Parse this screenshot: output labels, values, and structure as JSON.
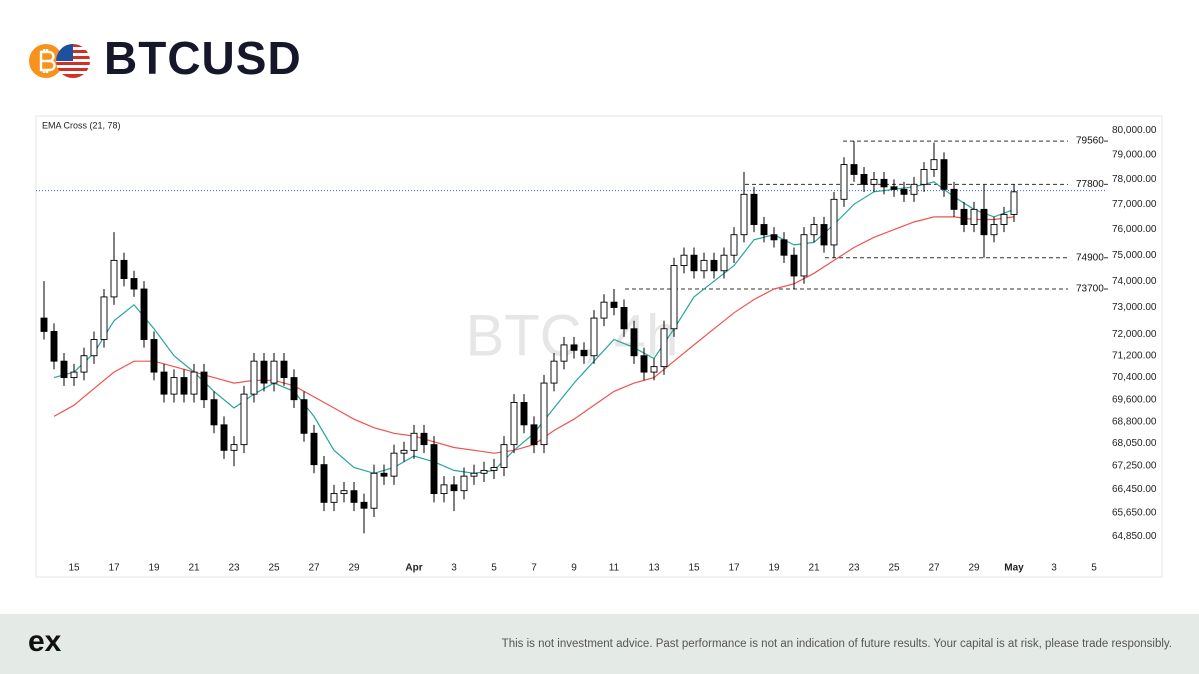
{
  "header": {
    "title": "BTCUSD"
  },
  "footer": {
    "logo": "ex",
    "disclaimer": "This is not investment advice. Past performance is not an indication of future results. Your capital is at risk, please trade responsibly."
  },
  "chart_data": {
    "type": "candlestick",
    "indicator_label": "EMA Cross (21, 78)",
    "watermark": "BTC, 4h",
    "log_scale": true,
    "grid": false,
    "up_color": "#ffffff",
    "down_color": "#000000",
    "wick_color": "#000000",
    "x": [
      13.5,
      14,
      14.5,
      15,
      15.5,
      16,
      16.5,
      17,
      17.5,
      18,
      18.5,
      19,
      19.5,
      20,
      20.5,
      21,
      21.5,
      22,
      22.5,
      23,
      23.5,
      24,
      24.5,
      25,
      25.5,
      26,
      26.5,
      27,
      27.5,
      28,
      28.5,
      29,
      29.5,
      30,
      30.5,
      31,
      31.5,
      32,
      32.5,
      33,
      33.5,
      34,
      34.5,
      35,
      35.5,
      36,
      36.5,
      37,
      37.5,
      38,
      38.5,
      39,
      39.5,
      40,
      40.5,
      41,
      41.5,
      42,
      42.5,
      43,
      43.5,
      44,
      44.5,
      45,
      45.5,
      46,
      46.5,
      47,
      47.5,
      48,
      48.5,
      49,
      49.5,
      50,
      50.5,
      51,
      51.5,
      52,
      52.5,
      53,
      53.5,
      54,
      54.5,
      55,
      55.5,
      56,
      56.5,
      57,
      57.5,
      58,
      58.5,
      59,
      59.5,
      60,
      60.5,
      61,
      61.5,
      62
    ],
    "open": [
      72600,
      72100,
      71000,
      70400,
      70600,
      71200,
      71800,
      73400,
      74800,
      74100,
      73700,
      71800,
      70600,
      69800,
      70400,
      69800,
      70600,
      69600,
      68700,
      67800,
      68000,
      69800,
      71000,
      70200,
      71000,
      70400,
      69600,
      68400,
      67300,
      66000,
      66300,
      66400,
      66000,
      65800,
      67000,
      66900,
      67700,
      67800,
      68400,
      68000,
      66300,
      66600,
      66400,
      66900,
      67000,
      67100,
      67200,
      68000,
      69500,
      68700,
      68000,
      70200,
      71000,
      71600,
      71400,
      71200,
      72600,
      73200,
      73000,
      72200,
      71200,
      70600,
      70800,
      72200,
      74600,
      75000,
      74400,
      74800,
      74400,
      75000,
      75800,
      77400,
      76200,
      75800,
      75600,
      75000,
      74200,
      75800,
      76200,
      75400,
      77200,
      78600,
      78200,
      77800,
      78000,
      77700,
      77600,
      77400,
      77800,
      78400,
      78800,
      77600,
      76800,
      76200,
      76800,
      75800,
      76200,
      76600
    ],
    "high": [
      74000,
      72400,
      71300,
      70900,
      71500,
      72100,
      73700,
      75900,
      75100,
      74400,
      74000,
      72100,
      70900,
      70700,
      70700,
      70900,
      70900,
      69900,
      69000,
      68300,
      70100,
      71300,
      71300,
      71300,
      71300,
      70700,
      69900,
      68700,
      67600,
      66600,
      66700,
      66700,
      66300,
      67300,
      67300,
      68000,
      68100,
      68700,
      68700,
      68300,
      66900,
      66900,
      67200,
      67300,
      67400,
      67500,
      68300,
      69800,
      69800,
      69000,
      70500,
      71300,
      71900,
      71900,
      71700,
      72900,
      73500,
      73700,
      73300,
      72500,
      71500,
      71100,
      72500,
      74900,
      75300,
      75300,
      75100,
      75100,
      75300,
      76100,
      78300,
      77700,
      76500,
      76100,
      75900,
      75300,
      76100,
      76500,
      76500,
      77500,
      78900,
      79560,
      78500,
      78300,
      78300,
      78000,
      77900,
      78100,
      78700,
      79500,
      79100,
      77900,
      77100,
      77100,
      77800,
      76500,
      76900,
      77800
    ],
    "low": [
      71800,
      70700,
      70100,
      70100,
      70300,
      70900,
      71500,
      73100,
      73800,
      73400,
      71500,
      70300,
      69500,
      69500,
      69500,
      69500,
      69300,
      68400,
      67500,
      67250,
      67700,
      69500,
      69900,
      69900,
      70100,
      69300,
      68100,
      67000,
      65700,
      65700,
      66000,
      65700,
      64950,
      65500,
      66600,
      66600,
      67400,
      67500,
      67700,
      66000,
      66000,
      65700,
      66100,
      66600,
      66700,
      66800,
      66900,
      67700,
      68400,
      67700,
      67700,
      69900,
      70700,
      71100,
      70900,
      70900,
      72300,
      72700,
      71900,
      70900,
      70300,
      70300,
      70500,
      71900,
      74300,
      74100,
      74100,
      74100,
      74100,
      74700,
      75500,
      75900,
      75500,
      75300,
      74700,
      73700,
      73900,
      75500,
      75100,
      74900,
      76900,
      77900,
      77500,
      77500,
      77400,
      77300,
      77100,
      77100,
      77500,
      78100,
      77300,
      76500,
      75900,
      75900,
      74900,
      75500,
      75900,
      76300
    ],
    "close": [
      72100,
      71000,
      70400,
      70600,
      71200,
      71800,
      73400,
      74800,
      74100,
      73700,
      71800,
      70600,
      69800,
      70400,
      69800,
      70600,
      69600,
      68700,
      67800,
      68000,
      69800,
      71000,
      70200,
      71000,
      70400,
      69600,
      68400,
      67300,
      66000,
      66300,
      66400,
      66000,
      65800,
      67000,
      66900,
      67700,
      67800,
      68400,
      68000,
      66300,
      66600,
      66400,
      66900,
      67000,
      67100,
      67200,
      68000,
      69500,
      68700,
      68000,
      70200,
      71000,
      71600,
      71400,
      71200,
      72600,
      73200,
      73000,
      72200,
      71200,
      70600,
      70800,
      72200,
      74600,
      75000,
      74400,
      74800,
      74400,
      75000,
      75800,
      77400,
      76200,
      75800,
      75600,
      75000,
      74200,
      75800,
      76200,
      75400,
      77200,
      78600,
      78200,
      77800,
      78000,
      77700,
      77600,
      77400,
      77800,
      78400,
      78800,
      77600,
      76800,
      76200,
      76800,
      75800,
      76200,
      76600,
      77500
    ],
    "series": [
      {
        "color": "#26a69a",
        "x": [
          14,
          15,
          16,
          17,
          18,
          19,
          20,
          21,
          22,
          23,
          24,
          25,
          26,
          27,
          28,
          29,
          30,
          31,
          32,
          33,
          34,
          35,
          36,
          37,
          38,
          39,
          40,
          41,
          42,
          43,
          44,
          45,
          46,
          47,
          48,
          49,
          50,
          51,
          52,
          53,
          54,
          55,
          56,
          57,
          58,
          59,
          60,
          61,
          62
        ],
        "values": [
          70400,
          70600,
          71300,
          72500,
          73100,
          72200,
          71200,
          70600,
          69900,
          69300,
          69800,
          70200,
          69900,
          69000,
          67800,
          67200,
          67000,
          67200,
          67600,
          67400,
          67100,
          67000,
          67100,
          67800,
          68400,
          69300,
          70200,
          71000,
          71800,
          71500,
          71100,
          72200,
          73400,
          74000,
          74600,
          75600,
          75800,
          75400,
          75500,
          76200,
          77000,
          77500,
          77600,
          77700,
          77900,
          77300,
          76800,
          76500,
          76800
        ]
      },
      {
        "color": "#ef5350",
        "x": [
          14,
          15,
          16,
          17,
          18,
          19,
          20,
          21,
          22,
          23,
          24,
          25,
          26,
          27,
          28,
          29,
          30,
          31,
          32,
          33,
          34,
          35,
          36,
          37,
          38,
          39,
          40,
          41,
          42,
          43,
          44,
          45,
          46,
          47,
          48,
          49,
          50,
          51,
          52,
          53,
          54,
          55,
          56,
          57,
          58,
          59,
          60,
          61,
          62
        ],
        "values": [
          69000,
          69400,
          70000,
          70600,
          71000,
          71000,
          70800,
          70600,
          70400,
          70200,
          70300,
          70300,
          70100,
          69700,
          69300,
          68900,
          68600,
          68400,
          68300,
          68100,
          67900,
          67800,
          67700,
          67800,
          68000,
          68500,
          68900,
          69400,
          69900,
          70200,
          70400,
          71000,
          71600,
          72200,
          72800,
          73300,
          73700,
          73900,
          74300,
          74800,
          75300,
          75700,
          76000,
          76300,
          76500,
          76500,
          76400,
          76400,
          76500
        ]
      }
    ],
    "levels": [
      {
        "value": 79560,
        "x_start": 53.45
      },
      {
        "value": 77800,
        "x_start": 48.55
      },
      {
        "value": 74900,
        "x_start": 52.55
      },
      {
        "value": 73700,
        "x_start": 42.55
      }
    ],
    "last_price": 77550,
    "last_price_color": "#2962ff",
    "xlim": [
      13.1,
      66.6
    ],
    "ylim": [
      63500,
      80600
    ],
    "xticks": [
      15,
      17,
      19,
      21,
      23,
      25,
      27,
      29,
      {
        "value": 32,
        "label": "Apr"
      },
      {
        "value": 34,
        "label": "3"
      },
      {
        "value": 36,
        "label": "5"
      },
      {
        "value": 38,
        "label": "7"
      },
      {
        "value": 40,
        "label": "9"
      },
      {
        "value": 42,
        "label": "11"
      },
      {
        "value": 44,
        "label": "13"
      },
      {
        "value": 46,
        "label": "15"
      },
      {
        "value": 48,
        "label": "17"
      },
      {
        "value": 50,
        "label": "19"
      },
      {
        "value": 52,
        "label": "21"
      },
      {
        "value": 54,
        "label": "23"
      },
      {
        "value": 56,
        "label": "25"
      },
      {
        "value": 58,
        "label": "27"
      },
      {
        "value": 60,
        "label": "29"
      },
      {
        "value": 62,
        "label": "May"
      },
      {
        "value": 64,
        "label": "3"
      },
      {
        "value": 66,
        "label": "5"
      }
    ],
    "yticks": [
      {
        "value": 80000,
        "label": "80,000.00"
      },
      {
        "value": 79000,
        "label": "79,000.00"
      },
      {
        "value": 78000,
        "label": "78,000.00"
      },
      {
        "value": 77000,
        "label": "77,000.00"
      },
      {
        "value": 76000,
        "label": "76,000.00"
      },
      {
        "value": 75000,
        "label": "75,000.00"
      },
      {
        "value": 74000,
        "label": "74,000.00"
      },
      {
        "value": 73000,
        "label": "73,000.00"
      },
      {
        "value": 72000,
        "label": "72,000.00"
      },
      {
        "value": 71200,
        "label": "71,200.00"
      },
      {
        "value": 70400,
        "label": "70,400.00"
      },
      {
        "value": 69600,
        "label": "69,600.00"
      },
      {
        "value": 68800,
        "label": "68,800.00"
      },
      {
        "value": 68050,
        "label": "68,050.00"
      },
      {
        "value": 67250,
        "label": "67,250.00"
      },
      {
        "value": 66450,
        "label": "66,450.00"
      },
      {
        "value": 65650,
        "label": "65,650.00"
      },
      {
        "value": 64850,
        "label": "64,850.00"
      }
    ]
  }
}
